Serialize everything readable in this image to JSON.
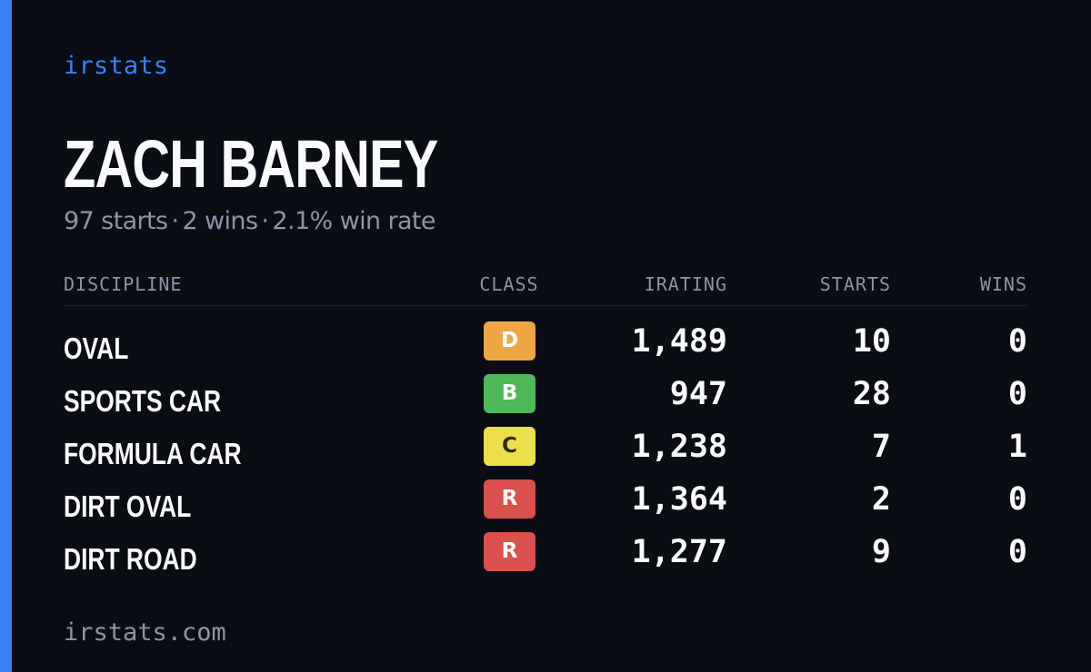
{
  "brand": "irstats",
  "colors": {
    "accent": "#3d7ff5",
    "background": "#0a0d13",
    "text": "#f8fafc",
    "muted": "#8b95a8"
  },
  "driver": {
    "name": "ZACH BARNEY",
    "starts": "97 starts",
    "wins": "2 wins",
    "win_rate": "2.1% win rate",
    "separator": "·"
  },
  "table": {
    "headers": {
      "discipline": "DISCIPLINE",
      "class": "CLASS",
      "irating": "IRATING",
      "starts": "STARTS",
      "wins": "WINS"
    },
    "rows": [
      {
        "discipline": "OVAL",
        "class": "D",
        "class_color": "#eea645",
        "class_text_color": "#ffffff",
        "irating": "1,489",
        "starts": "10",
        "wins": "0"
      },
      {
        "discipline": "SPORTS CAR",
        "class": "B",
        "class_color": "#4fb95a",
        "class_text_color": "#ffffff",
        "irating": "947",
        "starts": "28",
        "wins": "0"
      },
      {
        "discipline": "FORMULA CAR",
        "class": "C",
        "class_color": "#ebe04a",
        "class_text_color": "#2a2a18",
        "irating": "1,238",
        "starts": "7",
        "wins": "1"
      },
      {
        "discipline": "DIRT OVAL",
        "class": "R",
        "class_color": "#d9504c",
        "class_text_color": "#ffffff",
        "irating": "1,364",
        "starts": "2",
        "wins": "0"
      },
      {
        "discipline": "DIRT ROAD",
        "class": "R",
        "class_color": "#d9504c",
        "class_text_color": "#ffffff",
        "irating": "1,277",
        "starts": "9",
        "wins": "0"
      }
    ]
  },
  "footer": "irstats.com"
}
